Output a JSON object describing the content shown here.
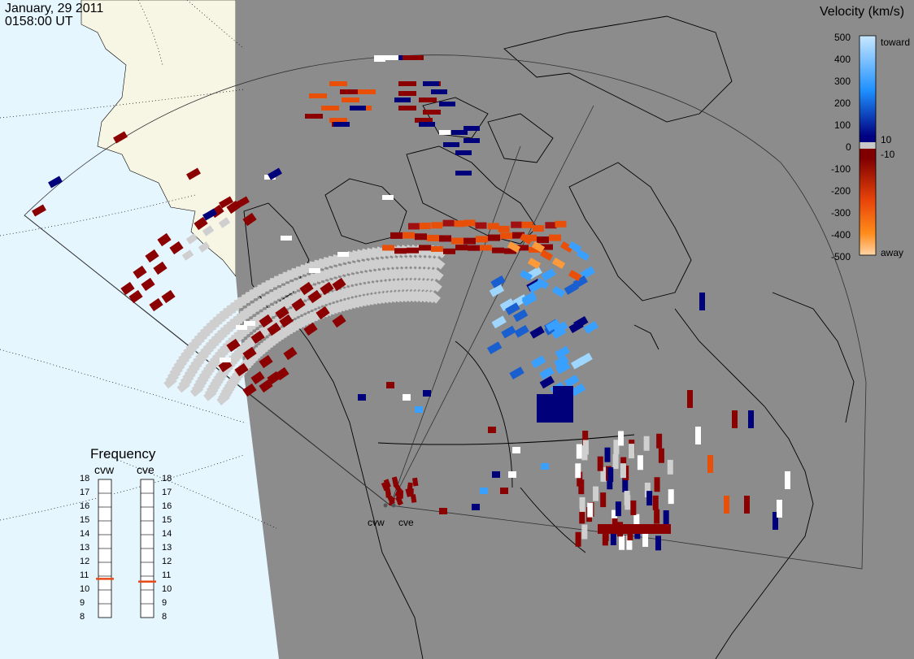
{
  "header": {
    "date": "January, 29 2011",
    "time": "0158:00 UT"
  },
  "colorbar": {
    "title": "Velocity (km/s)",
    "ticks": [
      "500",
      "400",
      "300",
      "200",
      "100",
      "10",
      "0",
      "-10",
      "-100",
      "-200",
      "-300",
      "-400",
      "-500"
    ],
    "toward_label": "toward",
    "away_label": "away",
    "colors": {
      "toward_max": "#c8e8ff",
      "toward_mid": "#1e90ff",
      "toward_min": "#000080",
      "zero": "#c8c8c8",
      "away_min": "#800000",
      "away_mid": "#e8440a",
      "away_max": "#ffd5a8"
    }
  },
  "map": {
    "ocean_color": "#e6f6ff",
    "land_color": "#f7f5e4",
    "shade_color": "#8c8c8c",
    "scatter_color": "#c8c8c8"
  },
  "frequency": {
    "title": "Frequency",
    "radars": [
      {
        "name": "cvw",
        "freq_mhz": 10.8
      },
      {
        "name": "cve",
        "freq_mhz": 10.6
      }
    ],
    "scale": [
      "18",
      "17",
      "16",
      "15",
      "14",
      "13",
      "12",
      "11",
      "10",
      "9",
      "8"
    ],
    "marker_color": "#e84a1a"
  },
  "radar_sites": [
    "cvw",
    "cve"
  ]
}
